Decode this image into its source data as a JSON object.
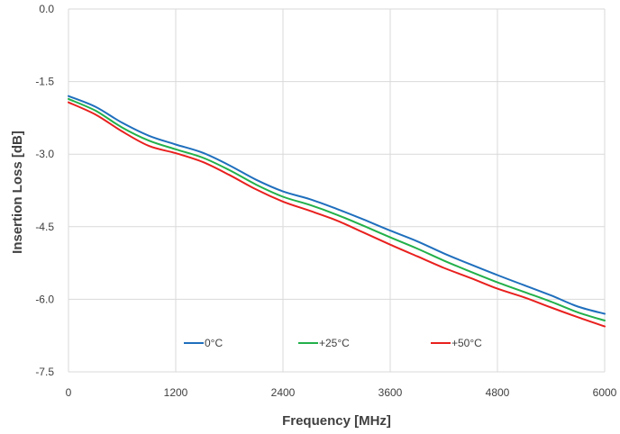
{
  "chart_data": {
    "type": "line",
    "title": "",
    "xlabel": "Frequency [MHz]",
    "ylabel": "Insertion Loss [dB]",
    "xlim": [
      0,
      6000
    ],
    "ylim": [
      -7.5,
      0
    ],
    "xticks": [
      0,
      1200,
      2400,
      3600,
      4800,
      6000
    ],
    "xtick_labels": [
      "0",
      "1200",
      "2400",
      "3600",
      "4800",
      "6000"
    ],
    "yticks": [
      0,
      -1.5,
      -3,
      -4.5,
      -6,
      -7.5
    ],
    "ytick_labels": [
      "0.0",
      "-1.5",
      "-3.0",
      "-4.5",
      "-6.0",
      "-7.5"
    ],
    "grid": true,
    "legend_position": "bottom-center inside plot",
    "x": [
      0,
      300,
      600,
      900,
      1200,
      1500,
      1800,
      2100,
      2400,
      2700,
      3000,
      3300,
      3600,
      3900,
      4200,
      4500,
      4800,
      5100,
      5400,
      5700,
      6000
    ],
    "series": [
      {
        "name": "0°C",
        "color": "#1f6fbd",
        "values": [
          -1.8,
          -2.02,
          -2.35,
          -2.62,
          -2.8,
          -2.97,
          -3.23,
          -3.53,
          -3.77,
          -3.93,
          -4.13,
          -4.35,
          -4.58,
          -4.8,
          -5.05,
          -5.28,
          -5.5,
          -5.71,
          -5.92,
          -6.15,
          -6.3
        ]
      },
      {
        "name": "+25°C",
        "color": "#22b04a",
        "values": [
          -1.86,
          -2.1,
          -2.45,
          -2.72,
          -2.9,
          -3.07,
          -3.33,
          -3.63,
          -3.88,
          -4.05,
          -4.25,
          -4.48,
          -4.72,
          -4.95,
          -5.2,
          -5.43,
          -5.65,
          -5.85,
          -6.05,
          -6.27,
          -6.44
        ]
      },
      {
        "name": "+50°C",
        "color": "#e8201e",
        "values": [
          -1.93,
          -2.18,
          -2.53,
          -2.83,
          -2.98,
          -3.16,
          -3.43,
          -3.73,
          -3.98,
          -4.17,
          -4.37,
          -4.62,
          -4.87,
          -5.11,
          -5.35,
          -5.56,
          -5.78,
          -5.96,
          -6.17,
          -6.37,
          -6.56
        ]
      }
    ]
  }
}
